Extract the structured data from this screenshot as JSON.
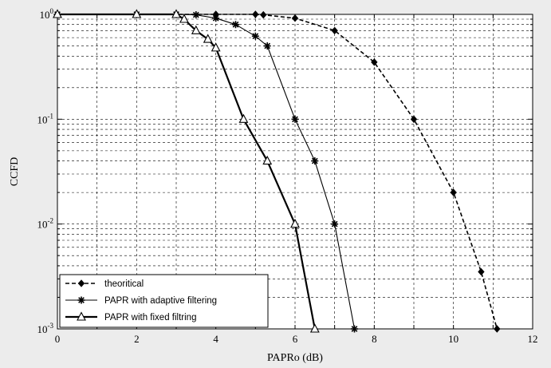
{
  "chart_data": {
    "type": "line",
    "title": "",
    "xlabel": "PAPRo (dB)",
    "ylabel": "CCFD",
    "xlim": [
      0,
      12
    ],
    "ylim": [
      0.001,
      1
    ],
    "yscale": "log",
    "grid": true,
    "x_ticks": [
      "0",
      "2",
      "4",
      "6",
      "8",
      "10",
      "12"
    ],
    "y_ticks": [
      {
        "base": "10",
        "exp": "0"
      },
      {
        "base": "10",
        "exp": "-1"
      },
      {
        "base": "10",
        "exp": "-2"
      },
      {
        "base": "10",
        "exp": "-3"
      }
    ],
    "legend_position": "bottom-left",
    "series": [
      {
        "name": "theoritical",
        "line_style": "dashed",
        "marker": "diamond",
        "points": [
          [
            0,
            1.0
          ],
          [
            2,
            1.0
          ],
          [
            3,
            1.0
          ],
          [
            4,
            1.0
          ],
          [
            5,
            1.0
          ],
          [
            5.2,
            0.99
          ],
          [
            6,
            0.92
          ],
          [
            7,
            0.7
          ],
          [
            8,
            0.35
          ],
          [
            9,
            0.1
          ],
          [
            10,
            0.02
          ],
          [
            10.7,
            0.0035
          ],
          [
            11.1,
            0.001
          ]
        ]
      },
      {
        "name": "PAPR with adaptive filtering",
        "line_style": "solid",
        "marker": "star",
        "points": [
          [
            0,
            1.0
          ],
          [
            2,
            1.0
          ],
          [
            3,
            1.0
          ],
          [
            3.5,
            0.99
          ],
          [
            4,
            0.92
          ],
          [
            4.5,
            0.8
          ],
          [
            5,
            0.62
          ],
          [
            5.3,
            0.5
          ],
          [
            6,
            0.1
          ],
          [
            6.5,
            0.04
          ],
          [
            7,
            0.01
          ],
          [
            7.5,
            0.001
          ]
        ]
      },
      {
        "name": "PAPR with fixed filtring",
        "line_style": "solid",
        "marker": "triangle",
        "points": [
          [
            0,
            1.0
          ],
          [
            2,
            1.0
          ],
          [
            3,
            1.0
          ],
          [
            3.2,
            0.9
          ],
          [
            3.5,
            0.7
          ],
          [
            3.8,
            0.58
          ],
          [
            4,
            0.48
          ],
          [
            4.7,
            0.1
          ],
          [
            5.3,
            0.04
          ],
          [
            6,
            0.01
          ],
          [
            6.5,
            0.001
          ]
        ]
      }
    ]
  }
}
